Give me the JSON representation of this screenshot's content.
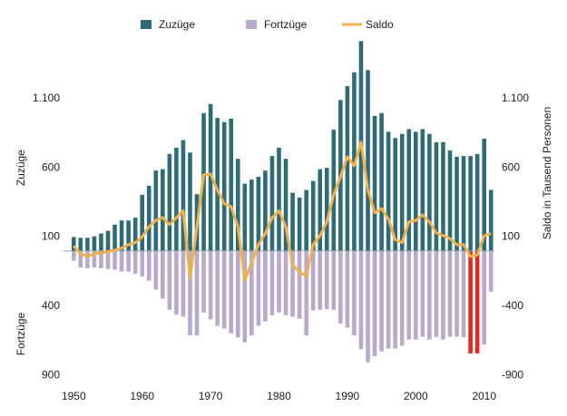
{
  "chart_data": {
    "type": "bar",
    "x": [
      1950,
      1951,
      1952,
      1953,
      1954,
      1955,
      1956,
      1957,
      1958,
      1959,
      1960,
      1961,
      1962,
      1963,
      1964,
      1965,
      1966,
      1967,
      1968,
      1969,
      1970,
      1971,
      1972,
      1973,
      1974,
      1975,
      1976,
      1977,
      1978,
      1979,
      1980,
      1981,
      1982,
      1983,
      1984,
      1985,
      1986,
      1987,
      1988,
      1989,
      1990,
      1991,
      1992,
      1993,
      1994,
      1995,
      1996,
      1997,
      1998,
      1999,
      2000,
      2001,
      2002,
      2003,
      2004,
      2005,
      2006,
      2007,
      2008,
      2009,
      2010,
      2011
    ],
    "series": [
      {
        "name": "Zuzüge",
        "type": "bar",
        "color": "#2e6b78",
        "values": [
          100,
          95,
          95,
          105,
          125,
          145,
          190,
          220,
          220,
          240,
          405,
          470,
          580,
          590,
          700,
          745,
          800,
          710,
          410,
          995,
          1060,
          960,
          930,
          955,
          665,
          485,
          515,
          535,
          580,
          685,
          745,
          665,
          420,
          385,
          440,
          505,
          590,
          600,
          875,
          1090,
          1190,
          1290,
          1515,
          1305,
          975,
          995,
          860,
          815,
          845,
          880,
          860,
          880,
          845,
          785,
          785,
          725,
          680,
          685,
          685,
          700,
          810,
          440
        ]
      },
      {
        "name": "Fortzüge",
        "type": "bar",
        "color": "#b9a9cf",
        "colors": [
          "#b9a9cf",
          "#b9a9cf",
          "#b9a9cf",
          "#b9a9cf",
          "#b9a9cf",
          "#b9a9cf",
          "#b9a9cf",
          "#b9a9cf",
          "#b9a9cf",
          "#b9a9cf",
          "#b9a9cf",
          "#b9a9cf",
          "#b9a9cf",
          "#b9a9cf",
          "#b9a9cf",
          "#b9a9cf",
          "#b9a9cf",
          "#b9a9cf",
          "#b9a9cf",
          "#b9a9cf",
          "#b9a9cf",
          "#b9a9cf",
          "#b9a9cf",
          "#b9a9cf",
          "#b9a9cf",
          "#b9a9cf",
          "#b9a9cf",
          "#b9a9cf",
          "#b9a9cf",
          "#b9a9cf",
          "#b9a9cf",
          "#b9a9cf",
          "#b9a9cf",
          "#b9a9cf",
          "#b9a9cf",
          "#b9a9cf",
          "#b9a9cf",
          "#b9a9cf",
          "#b9a9cf",
          "#b9a9cf",
          "#b9a9cf",
          "#b9a9cf",
          "#b9a9cf",
          "#b9a9cf",
          "#b9a9cf",
          "#b9a9cf",
          "#b9a9cf",
          "#b9a9cf",
          "#b9a9cf",
          "#b9a9cf",
          "#b9a9cf",
          "#b9a9cf",
          "#b9a9cf",
          "#b9a9cf",
          "#b9a9cf",
          "#b9a9cf",
          "#b9a9cf",
          "#b9a9cf",
          "#e8241b",
          "#e8241b",
          "#b9a9cf",
          "#b9a9cf"
        ],
        "values": [
          -70,
          -120,
          -125,
          -120,
          -125,
          -130,
          -135,
          -150,
          -150,
          -165,
          -185,
          -215,
          -280,
          -345,
          -425,
          -460,
          -475,
          -610,
          -610,
          -445,
          -495,
          -540,
          -560,
          -595,
          -625,
          -660,
          -610,
          -540,
          -510,
          -465,
          -445,
          -465,
          -475,
          -490,
          -610,
          -430,
          -425,
          -420,
          -425,
          -525,
          -555,
          -610,
          -710,
          -805,
          -760,
          -725,
          -705,
          -705,
          -685,
          -640,
          -640,
          -620,
          -640,
          -620,
          -640,
          -620,
          -620,
          -625,
          -740,
          -740,
          -675,
          -295
        ]
      },
      {
        "name": "Saldo",
        "type": "line",
        "axis": "y2",
        "color": "#f0b24a",
        "values": [
          35,
          -20,
          -40,
          -20,
          -15,
          -5,
          5,
          20,
          45,
          60,
          100,
          175,
          220,
          240,
          190,
          240,
          290,
          -195,
          175,
          550,
          555,
          440,
          340,
          320,
          175,
          -215,
          -85,
          45,
          125,
          240,
          290,
          175,
          -105,
          -150,
          -185,
          45,
          110,
          210,
          405,
          535,
          680,
          615,
          785,
          440,
          275,
          305,
          230,
          80,
          60,
          210,
          220,
          260,
          210,
          130,
          110,
          90,
          45,
          45,
          -40,
          -30,
          110,
          125
        ]
      }
    ],
    "y_label_upper": "Zuzüge",
    "y_label_lower": "Fortzüge",
    "y2_label": "Saldo in Tausend Personen",
    "xlim": [
      1948.5,
      2011.5
    ],
    "xticks": [
      1950,
      1960,
      1970,
      1980,
      1990,
      2000,
      2010
    ],
    "ylim": [
      -950,
      1550
    ],
    "yticks": [
      {
        "value": 1100,
        "label": "1.100"
      },
      600,
      100,
      {
        "value": -400,
        "label": "400"
      },
      {
        "value": -900,
        "label": "900"
      }
    ],
    "y2lim": [
      -950,
      1550
    ],
    "y2ticks": [
      {
        "value": 1100,
        "label": "1.100"
      },
      600,
      100,
      -400,
      -900
    ],
    "legend": "top"
  }
}
